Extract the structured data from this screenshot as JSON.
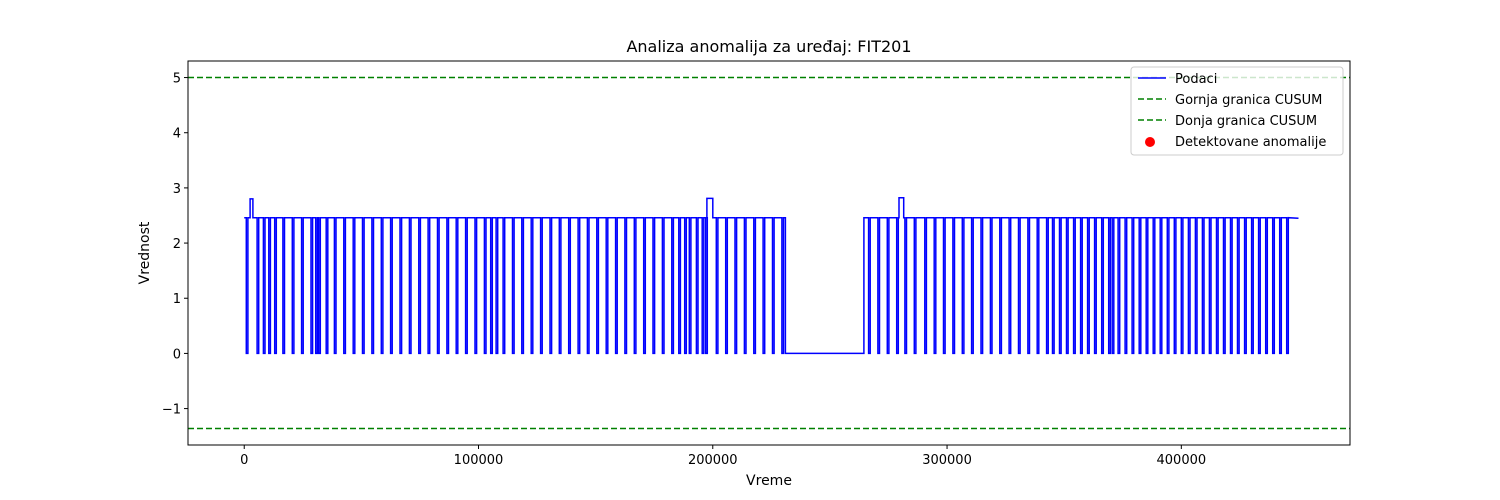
{
  "chart_data": {
    "type": "line",
    "title": "Analiza anomalija za uređaj: FIT201",
    "xlabel": "Vreme",
    "ylabel": "Vrednost",
    "xlim": [
      -24000,
      472000
    ],
    "ylim": [
      -1.66,
      5.3
    ],
    "xticks": [
      0,
      100000,
      200000,
      300000,
      400000
    ],
    "xtick_labels": [
      "0",
      "100000",
      "200000",
      "300000",
      "400000"
    ],
    "yticks": [
      -1,
      0,
      1,
      2,
      3,
      4,
      5
    ],
    "ytick_labels": [
      "−1",
      "0",
      "1",
      "2",
      "3",
      "4",
      "5"
    ],
    "grid": false,
    "legend_position": "upper right",
    "series": [
      {
        "name": "Podaci",
        "color": "#0000ff",
        "style": "solid",
        "high_value": 2.46,
        "low_value": 0,
        "start": 0,
        "end": 450000,
        "drop_times": [
          900,
          5500,
          8200,
          10500,
          13000,
          16500,
          20500,
          24500,
          28500,
          30500,
          31800,
          35000,
          38500,
          42500,
          46500,
          50500,
          54500,
          58500,
          62500,
          66500,
          70500,
          74500,
          78500,
          82500,
          86500,
          90500,
          94500,
          98500,
          102500,
          105200,
          107500,
          110500,
          114500,
          118500,
          122500,
          126500,
          130500,
          134500,
          138500,
          142500,
          146500,
          150500,
          154500,
          158500,
          162500,
          166500,
          170500,
          174500,
          178500,
          182500,
          185500,
          188000,
          190000,
          193000,
          195500,
          197000,
          201500,
          205500,
          209500,
          213500,
          217500,
          221500,
          225500,
          229500,
          266500,
          270500,
          274500,
          278500,
          282000,
          286000,
          290500,
          294500,
          298500,
          302500,
          306500,
          310500,
          314500,
          318500,
          322500,
          326500,
          330500,
          334500,
          338500,
          342500,
          345000,
          348000,
          351000,
          354000,
          357000,
          360000,
          363000,
          366000,
          369000,
          370500,
          373000,
          376000,
          379000,
          382000,
          385000,
          388000,
          391000,
          394000,
          397000,
          400000,
          403000,
          406000,
          409000,
          412000,
          415000,
          418000,
          421000,
          424000,
          427000,
          430000,
          433000,
          436000,
          439000,
          442000,
          445000
        ],
        "gap": [
          231000,
          264500
        ],
        "spikes": [
          {
            "x0": 2500,
            "x1": 3700,
            "y": 2.8
          },
          {
            "x0": 197500,
            "x1": 200000,
            "y": 2.81
          },
          {
            "x0": 279500,
            "x1": 281500,
            "y": 2.82
          }
        ],
        "end_value": 2.45
      },
      {
        "name": "Gornja granica CUSUM",
        "color": "#008000",
        "style": "dashed",
        "y": 5.0
      },
      {
        "name": "Donja granica CUSUM",
        "color": "#008000",
        "style": "dashed",
        "y": -1.36
      },
      {
        "name": "Detektovane anomalije",
        "color": "#ff0000",
        "style": "marker",
        "points": []
      }
    ]
  }
}
